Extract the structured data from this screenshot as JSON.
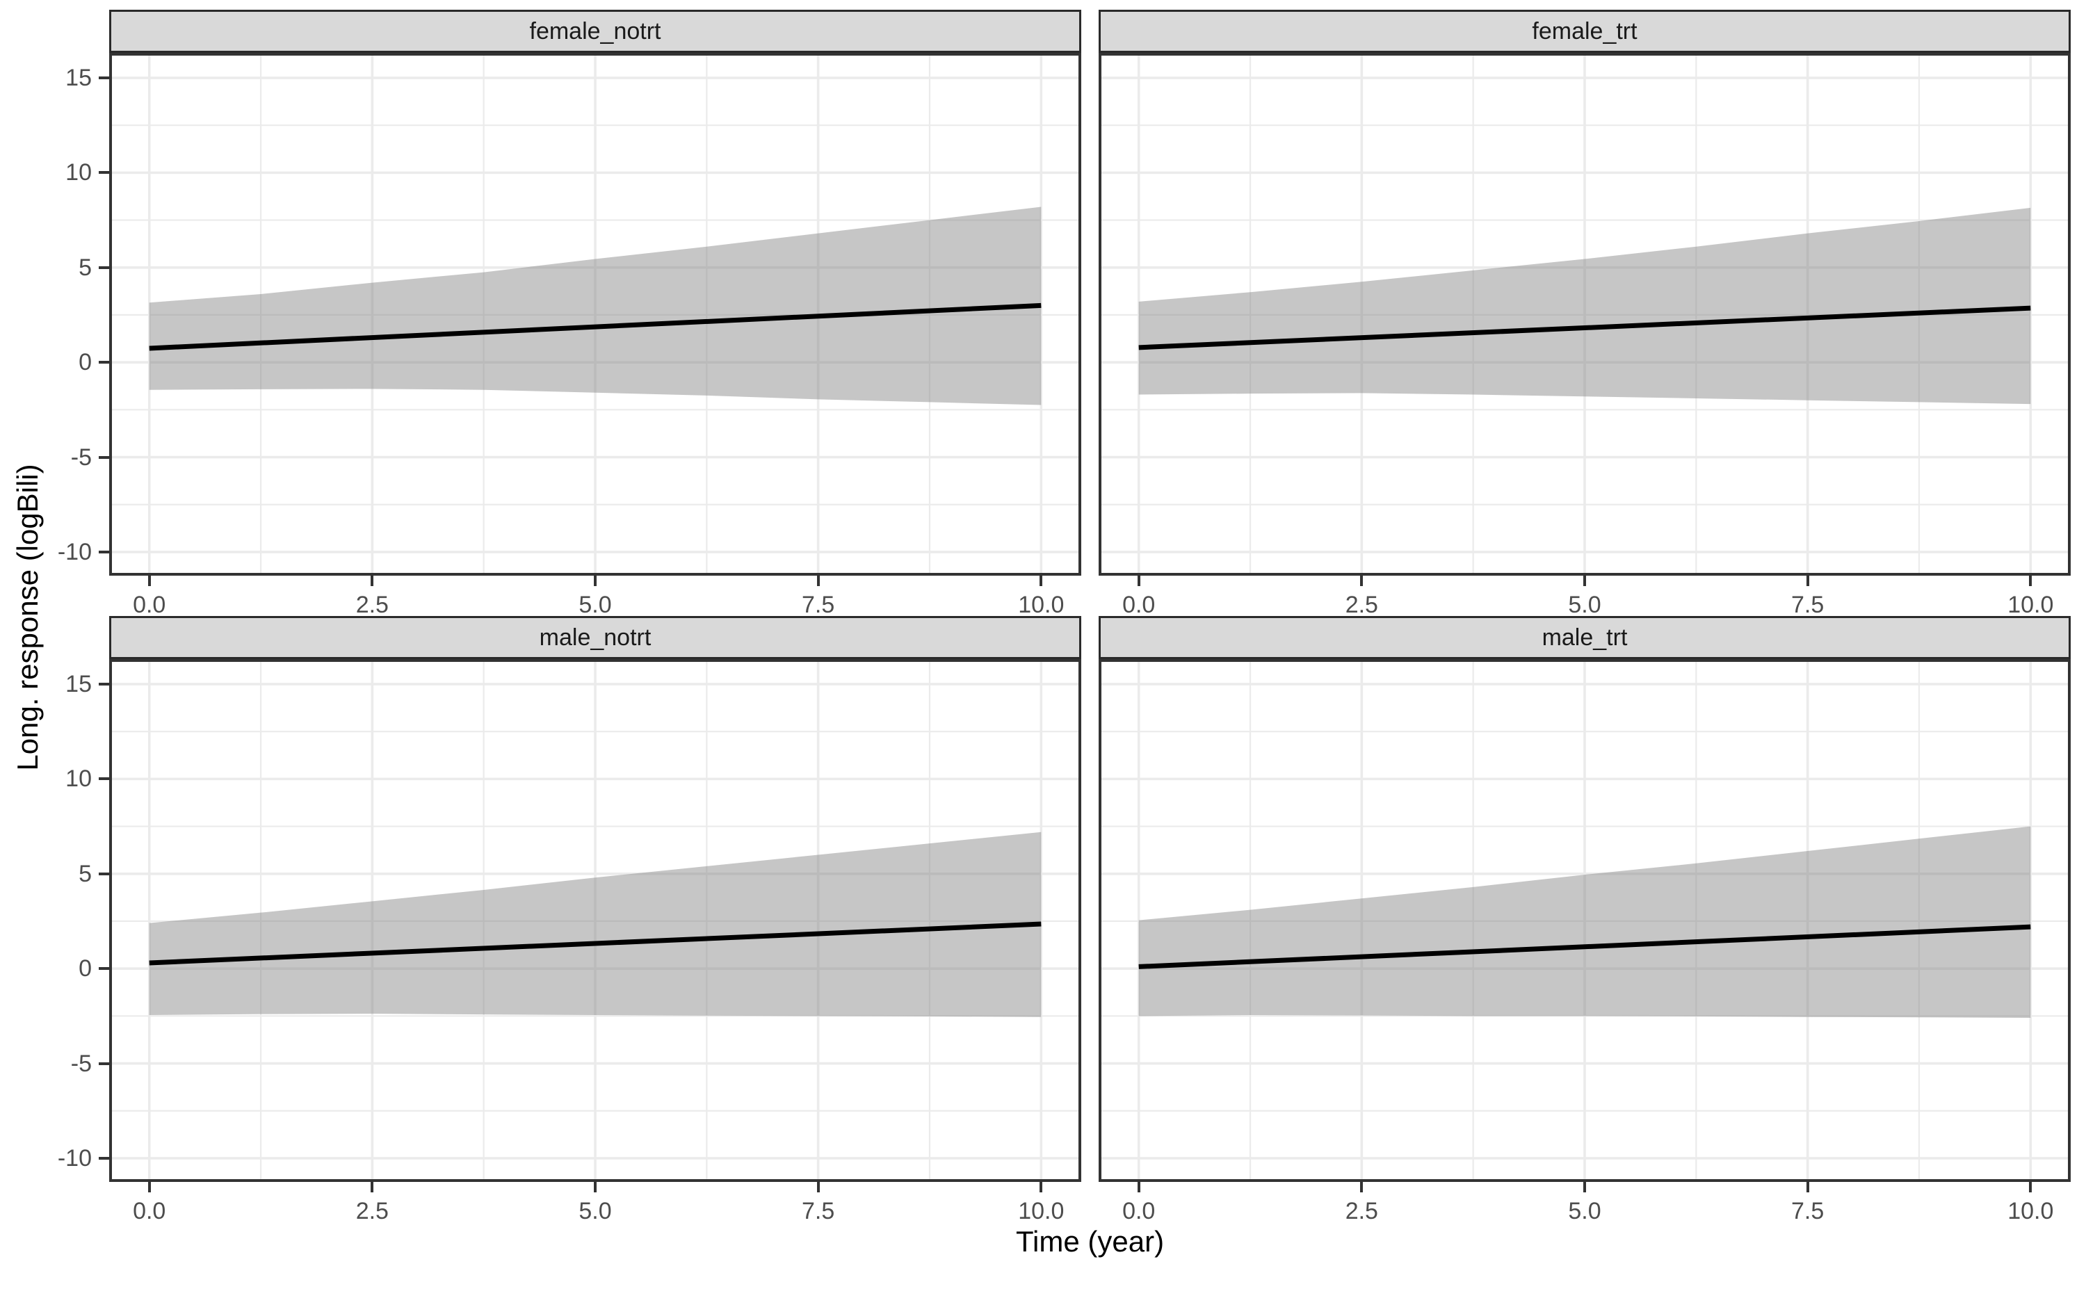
{
  "chart_data": {
    "type": "area",
    "title": "",
    "xlabel": "Time (year)",
    "ylabel": "Long. response (logBili)",
    "x": [
      0,
      1.25,
      2.5,
      3.75,
      5,
      6.25,
      7.5,
      8.75,
      10
    ],
    "xlim": [
      -0.45,
      10.45
    ],
    "ylim": [
      -11.25,
      16.32
    ],
    "x_tick_values": [
      0,
      2.5,
      5,
      7.5,
      10
    ],
    "x_tick_labels": [
      "0.0",
      "2.5",
      "5.0",
      "7.5",
      "10.0"
    ],
    "y_tick_values": [
      15,
      10,
      5,
      0,
      -5,
      -10
    ],
    "y_tick_labels": [
      "15",
      "10",
      "5",
      "0",
      "-5",
      "-10"
    ],
    "x_minor_ticks": [
      1.25,
      3.75,
      6.25,
      8.75
    ],
    "y_minor_ticks": [
      12.5,
      7.5,
      2.5,
      -2.5,
      -7.5
    ],
    "grid": true,
    "legend": false,
    "facets": [
      {
        "label": "female_notrt",
        "fit_line": {
          "x": [
            0,
            10
          ],
          "y": [
            0.74,
            3.0
          ]
        },
        "ribbon_upper": [
          3.15,
          3.6,
          4.2,
          4.75,
          5.45,
          6.1,
          6.8,
          7.5,
          8.2
        ],
        "ribbon_lower": [
          -1.45,
          -1.42,
          -1.4,
          -1.45,
          -1.6,
          -1.75,
          -1.95,
          -2.1,
          -2.25
        ]
      },
      {
        "label": "female_trt",
        "fit_line": {
          "x": [
            0,
            10
          ],
          "y": [
            0.78,
            2.86
          ]
        },
        "ribbon_upper": [
          3.2,
          3.7,
          4.25,
          4.85,
          5.45,
          6.1,
          6.8,
          7.45,
          8.15
        ],
        "ribbon_lower": [
          -1.7,
          -1.65,
          -1.62,
          -1.7,
          -1.8,
          -1.9,
          -2.0,
          -2.1,
          -2.2
        ]
      },
      {
        "label": "male_notrt",
        "fit_line": {
          "x": [
            0,
            10
          ],
          "y": [
            0.3,
            2.35
          ]
        },
        "ribbon_upper": [
          2.4,
          2.95,
          3.55,
          4.15,
          4.8,
          5.4,
          6.0,
          6.6,
          7.2
        ],
        "ribbon_lower": [
          -2.45,
          -2.4,
          -2.38,
          -2.42,
          -2.45,
          -2.48,
          -2.5,
          -2.52,
          -2.55
        ]
      },
      {
        "label": "male_trt",
        "fit_line": {
          "x": [
            0,
            10
          ],
          "y": [
            0.1,
            2.2
          ]
        },
        "ribbon_upper": [
          2.55,
          3.1,
          3.7,
          4.3,
          4.95,
          5.55,
          6.2,
          6.85,
          7.5
        ],
        "ribbon_lower": [
          -2.5,
          -2.45,
          -2.47,
          -2.5,
          -2.5,
          -2.52,
          -2.55,
          -2.57,
          -2.6
        ]
      }
    ]
  },
  "style": {
    "background": "#ffffff",
    "panel_background": "#ffffff",
    "ribbon_color": "#808080",
    "ribbon_opacity": 0.45,
    "line_color": "#000000",
    "grid_major_color": "#ebebeb",
    "grid_minor_color": "#ebebeb",
    "panel_border_color": "#333333",
    "strip_background": "#d9d9d9",
    "strip_border_color": "#2a2a2a",
    "strip_text_color": "#1a1a1a",
    "tick_color": "#333333",
    "tick_label_color": "#4d4d4d",
    "axis_title_color": "#000000"
  }
}
